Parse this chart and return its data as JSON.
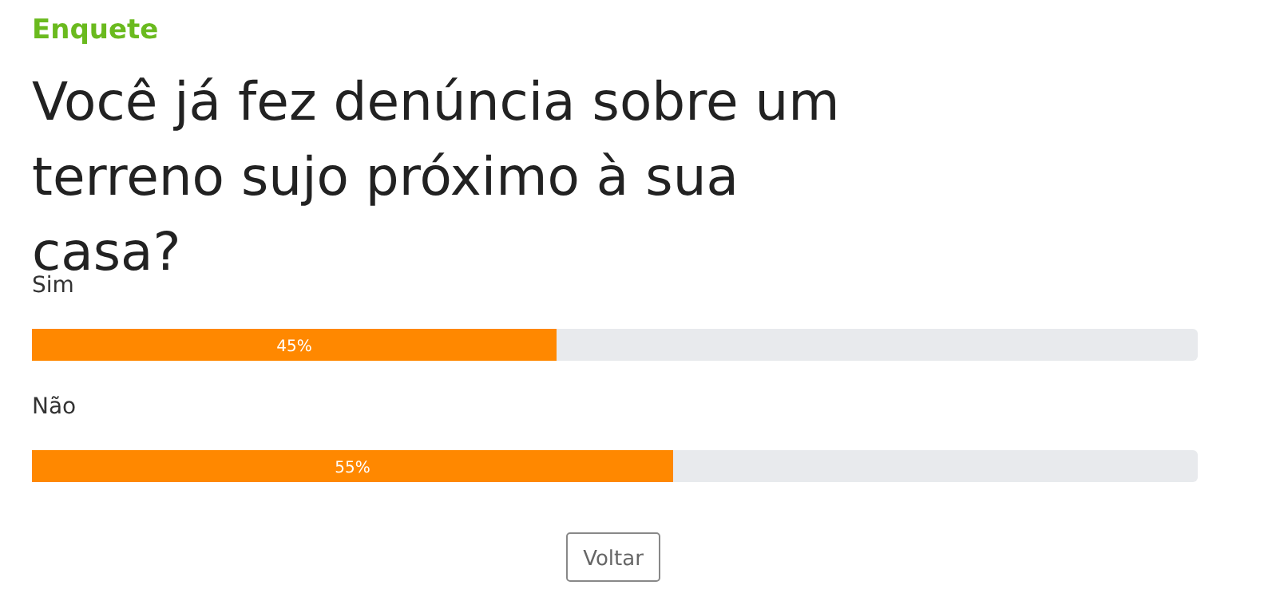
{
  "chart_data": {
    "type": "bar",
    "orientation": "horizontal",
    "subtitle": "Enquete",
    "title": "Você já fez denúncia sobre um terreno sujo próximo à sua casa?",
    "categories": [
      "Sim",
      "Não"
    ],
    "values": [
      45,
      55
    ],
    "color": "#ff8800",
    "value_labels": [
      "45%",
      "55%"
    ],
    "relative": false,
    "xlim": [
      0,
      100
    ],
    "tick_labels": "y",
    "annotations": [
      "Voltar"
    ]
  }
}
